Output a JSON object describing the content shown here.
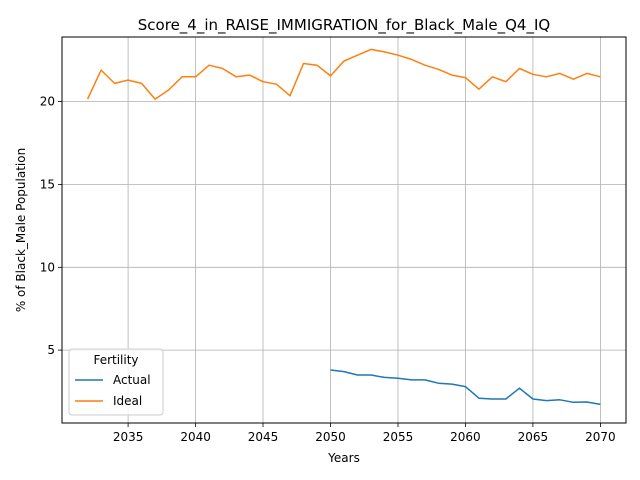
{
  "chart_data": {
    "type": "line",
    "title": "Score_4_in_RAISE_IMMIGRATION_for_Black_Male_Q4_IQ",
    "xlabel": "Years",
    "ylabel": "% of Black_Male Population",
    "xlim": [
      2030.1,
      2071.9
    ],
    "ylim": [
      0.6,
      23.9
    ],
    "xticks": [
      2035,
      2040,
      2045,
      2050,
      2055,
      2060,
      2065,
      2070
    ],
    "yticks": [
      5,
      10,
      15,
      20
    ],
    "grid": true,
    "legend": {
      "title": "Fertility",
      "placement": "lower-left"
    },
    "series": [
      {
        "name": "Actual",
        "color": "#1f77b4",
        "x": [
          2050,
          2051,
          2052,
          2053,
          2054,
          2055,
          2056,
          2057,
          2058,
          2059,
          2060,
          2061,
          2062,
          2063,
          2064,
          2065,
          2066,
          2067,
          2068,
          2069,
          2070
        ],
        "values": [
          3.8,
          3.7,
          3.5,
          3.5,
          3.35,
          3.3,
          3.2,
          3.2,
          3.0,
          2.95,
          2.8,
          2.1,
          2.05,
          2.05,
          2.7,
          2.05,
          1.95,
          2.0,
          1.85,
          1.87,
          1.72
        ]
      },
      {
        "name": "Ideal",
        "color": "#ff7f0e",
        "x": [
          2032,
          2033,
          2034,
          2035,
          2036,
          2037,
          2038,
          2039,
          2040,
          2041,
          2042,
          2043,
          2044,
          2045,
          2046,
          2047,
          2048,
          2049,
          2050,
          2051,
          2052,
          2053,
          2054,
          2055,
          2056,
          2057,
          2058,
          2059,
          2060,
          2061,
          2062,
          2063,
          2064,
          2065,
          2066,
          2067,
          2068,
          2069,
          2070
        ],
        "values": [
          20.15,
          21.9,
          21.1,
          21.3,
          21.1,
          20.15,
          20.7,
          21.5,
          21.5,
          22.2,
          22.0,
          21.5,
          21.6,
          21.2,
          21.05,
          20.35,
          22.3,
          22.2,
          21.55,
          22.45,
          22.8,
          23.15,
          23.0,
          22.8,
          22.55,
          22.2,
          21.95,
          21.6,
          21.45,
          20.75,
          21.5,
          21.2,
          22.0,
          21.65,
          21.5,
          21.7,
          21.35,
          21.7,
          21.5
        ]
      }
    ]
  }
}
